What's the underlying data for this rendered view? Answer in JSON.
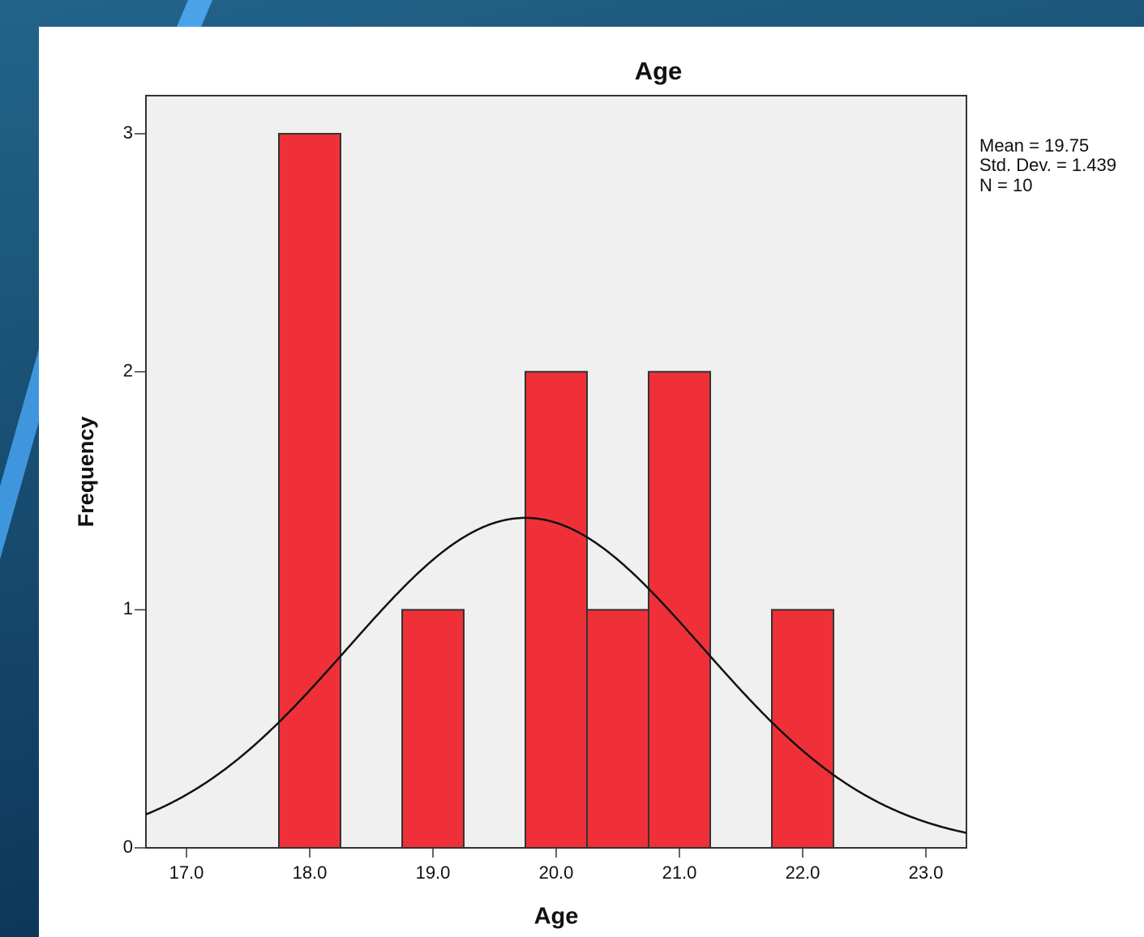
{
  "chart_data": {
    "type": "histogram",
    "title": "Age",
    "x_label": "Age",
    "y_label": "Frequency",
    "bins": [
      17.75,
      18.25,
      18.75,
      19.25,
      19.75,
      20.25,
      20.75,
      21.25,
      21.75,
      22.25
    ],
    "counts": [
      3,
      0,
      1,
      0,
      2,
      1,
      2,
      0,
      1
    ],
    "color": "#ef3038",
    "curve_color": "#111111",
    "xlim": [
      16.671,
      23.329
    ],
    "xticks": [
      {
        "value": 17,
        "label": "17.0"
      },
      {
        "value": 18,
        "label": "18.0"
      },
      {
        "value": 19,
        "label": "19.0"
      },
      {
        "value": 20,
        "label": "20.0"
      },
      {
        "value": 21,
        "label": "21.0"
      },
      {
        "value": 22,
        "label": "22.0"
      },
      {
        "value": 23,
        "label": "23.0"
      }
    ],
    "ylim": [
      0,
      3.16
    ],
    "yticks": [
      0,
      1,
      2,
      3
    ],
    "stats": {
      "mean": {
        "value": 19.75,
        "label": "Mean = 19.75"
      },
      "sd": {
        "value": 1.439,
        "label": "Std. Dev. = 1.439"
      },
      "n": {
        "value": 10,
        "label": "N = 10"
      }
    }
  }
}
